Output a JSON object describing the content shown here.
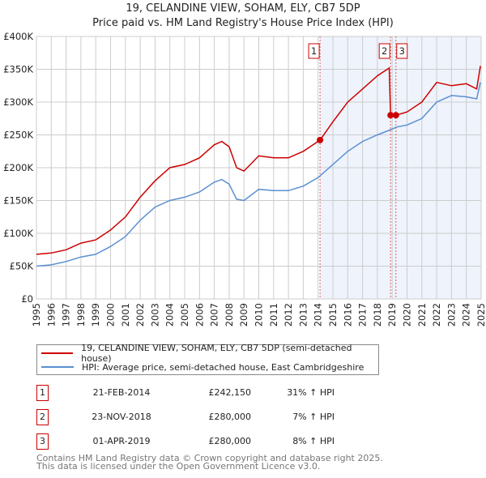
{
  "chart_data": {
    "type": "line",
    "title": "19, CELANDINE VIEW, SOHAM, ELY, CB7 5DP",
    "subtitle": "Price paid vs. HM Land Registry's House Price Index (HPI)",
    "xlim": [
      1995,
      2025
    ],
    "ylim": [
      0,
      400000
    ],
    "x_ticks": [
      "1995",
      "1996",
      "1997",
      "1998",
      "1999",
      "2000",
      "2001",
      "2002",
      "2003",
      "2004",
      "2005",
      "2006",
      "2007",
      "2008",
      "2009",
      "2010",
      "2011",
      "2012",
      "2013",
      "2014",
      "2015",
      "2016",
      "2017",
      "2018",
      "2019",
      "2020",
      "2021",
      "2022",
      "2023",
      "2024",
      "2025"
    ],
    "y_ticks": [
      {
        "v": 0,
        "l": "£0"
      },
      {
        "v": 50000,
        "l": "£50K"
      },
      {
        "v": 100000,
        "l": "£100K"
      },
      {
        "v": 150000,
        "l": "£150K"
      },
      {
        "v": 200000,
        "l": "£200K"
      },
      {
        "v": 250000,
        "l": "£250K"
      },
      {
        "v": 300000,
        "l": "£300K"
      },
      {
        "v": 350000,
        "l": "£350K"
      },
      {
        "v": 400000,
        "l": "£400K"
      }
    ],
    "grid": true,
    "series": [
      {
        "name": "19, CELANDINE VIEW, SOHAM, ELY, CB7 5DP (semi-detached house)",
        "color": "#cc0000",
        "x": [
          1995,
          1996,
          1997,
          1998,
          1999,
          2000,
          2001,
          2002,
          2003,
          2004,
          2005,
          2006,
          2007,
          2007.5,
          2008,
          2008.5,
          2009,
          2010,
          2011,
          2012,
          2013,
          2014.13,
          2015,
          2016,
          2017,
          2018,
          2018.8,
          2018.89,
          2019.25,
          2020,
          2021,
          2022,
          2023,
          2024,
          2024.7,
          2024.95
        ],
        "y": [
          68000,
          70000,
          75000,
          85000,
          90000,
          105000,
          125000,
          155000,
          180000,
          200000,
          205000,
          215000,
          235000,
          240000,
          232000,
          200000,
          195000,
          218000,
          215000,
          215000,
          225000,
          242150,
          270000,
          300000,
          320000,
          340000,
          352000,
          280000,
          280000,
          285000,
          300000,
          330000,
          325000,
          328000,
          320000,
          355000
        ]
      },
      {
        "name": "HPI: Average price, semi-detached house, East Cambridgeshire",
        "color": "#5b8fd0",
        "x": [
          1995,
          1996,
          1997,
          1998,
          1999,
          2000,
          2001,
          2002,
          2003,
          2004,
          2005,
          2006,
          2007,
          2007.5,
          2008,
          2008.5,
          2009,
          2010,
          2011,
          2012,
          2013,
          2014,
          2015,
          2016,
          2017,
          2018,
          2018.9,
          2019.3,
          2020,
          2021,
          2022,
          2023,
          2024,
          2024.7,
          2024.95
        ],
        "y": [
          50000,
          52000,
          57000,
          64000,
          68000,
          80000,
          95000,
          120000,
          140000,
          150000,
          155000,
          163000,
          178000,
          182000,
          175000,
          152000,
          150000,
          167000,
          165000,
          165000,
          172000,
          185000,
          205000,
          225000,
          240000,
          250000,
          258000,
          262000,
          265000,
          275000,
          300000,
          310000,
          308000,
          305000,
          330000
        ]
      }
    ],
    "sales": [
      {
        "n": "1",
        "x": 2014.13,
        "y": 242150
      },
      {
        "n": "2",
        "x": 2018.89,
        "y": 280000
      },
      {
        "n": "3",
        "x": 2019.25,
        "y": 280000
      }
    ],
    "shade_from": 2014.13
  },
  "legend": [
    "19, CELANDINE VIEW, SOHAM, ELY, CB7 5DP (semi-detached house)",
    "HPI: Average price, semi-detached house, East Cambridgeshire"
  ],
  "table": [
    {
      "n": "1",
      "date": "21-FEB-2014",
      "price": "£242,150",
      "hpi": "31% ↑ HPI"
    },
    {
      "n": "2",
      "date": "23-NOV-2018",
      "price": "£280,000",
      "hpi": "7% ↑ HPI"
    },
    {
      "n": "3",
      "date": "01-APR-2019",
      "price": "£280,000",
      "hpi": "8% ↑ HPI"
    }
  ],
  "footer": [
    "Contains HM Land Registry data © Crown copyright and database right 2025.",
    "This data is licensed under the Open Government Licence v3.0."
  ]
}
